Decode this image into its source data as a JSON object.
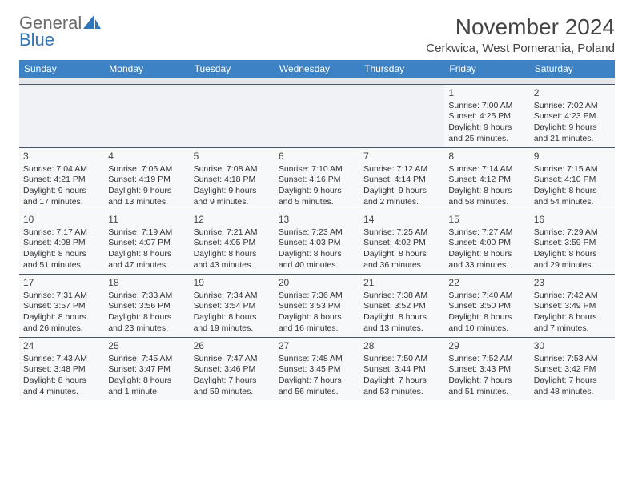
{
  "logo": {
    "text1": "General",
    "text2": "Blue"
  },
  "title": "November 2024",
  "location": "Cerkwica, West Pomerania, Poland",
  "colors": {
    "header_bg": "#3c82c4",
    "header_text": "#ffffff",
    "logo_gray": "#6b6b6b",
    "logo_blue": "#2f76bb",
    "cell_bg": "#f7f8fa",
    "empty_bg": "#f0f2f5",
    "border": "#4a5568"
  },
  "weekdays": [
    "Sunday",
    "Monday",
    "Tuesday",
    "Wednesday",
    "Thursday",
    "Friday",
    "Saturday"
  ],
  "weeks": [
    [
      {
        "empty": true
      },
      {
        "empty": true
      },
      {
        "empty": true
      },
      {
        "empty": true
      },
      {
        "empty": true
      },
      {
        "num": "1",
        "sunrise": "Sunrise: 7:00 AM",
        "sunset": "Sunset: 4:25 PM",
        "daylight": "Daylight: 9 hours and 25 minutes."
      },
      {
        "num": "2",
        "sunrise": "Sunrise: 7:02 AM",
        "sunset": "Sunset: 4:23 PM",
        "daylight": "Daylight: 9 hours and 21 minutes."
      }
    ],
    [
      {
        "num": "3",
        "sunrise": "Sunrise: 7:04 AM",
        "sunset": "Sunset: 4:21 PM",
        "daylight": "Daylight: 9 hours and 17 minutes."
      },
      {
        "num": "4",
        "sunrise": "Sunrise: 7:06 AM",
        "sunset": "Sunset: 4:19 PM",
        "daylight": "Daylight: 9 hours and 13 minutes."
      },
      {
        "num": "5",
        "sunrise": "Sunrise: 7:08 AM",
        "sunset": "Sunset: 4:18 PM",
        "daylight": "Daylight: 9 hours and 9 minutes."
      },
      {
        "num": "6",
        "sunrise": "Sunrise: 7:10 AM",
        "sunset": "Sunset: 4:16 PM",
        "daylight": "Daylight: 9 hours and 5 minutes."
      },
      {
        "num": "7",
        "sunrise": "Sunrise: 7:12 AM",
        "sunset": "Sunset: 4:14 PM",
        "daylight": "Daylight: 9 hours and 2 minutes."
      },
      {
        "num": "8",
        "sunrise": "Sunrise: 7:14 AM",
        "sunset": "Sunset: 4:12 PM",
        "daylight": "Daylight: 8 hours and 58 minutes."
      },
      {
        "num": "9",
        "sunrise": "Sunrise: 7:15 AM",
        "sunset": "Sunset: 4:10 PM",
        "daylight": "Daylight: 8 hours and 54 minutes."
      }
    ],
    [
      {
        "num": "10",
        "sunrise": "Sunrise: 7:17 AM",
        "sunset": "Sunset: 4:08 PM",
        "daylight": "Daylight: 8 hours and 51 minutes."
      },
      {
        "num": "11",
        "sunrise": "Sunrise: 7:19 AM",
        "sunset": "Sunset: 4:07 PM",
        "daylight": "Daylight: 8 hours and 47 minutes."
      },
      {
        "num": "12",
        "sunrise": "Sunrise: 7:21 AM",
        "sunset": "Sunset: 4:05 PM",
        "daylight": "Daylight: 8 hours and 43 minutes."
      },
      {
        "num": "13",
        "sunrise": "Sunrise: 7:23 AM",
        "sunset": "Sunset: 4:03 PM",
        "daylight": "Daylight: 8 hours and 40 minutes."
      },
      {
        "num": "14",
        "sunrise": "Sunrise: 7:25 AM",
        "sunset": "Sunset: 4:02 PM",
        "daylight": "Daylight: 8 hours and 36 minutes."
      },
      {
        "num": "15",
        "sunrise": "Sunrise: 7:27 AM",
        "sunset": "Sunset: 4:00 PM",
        "daylight": "Daylight: 8 hours and 33 minutes."
      },
      {
        "num": "16",
        "sunrise": "Sunrise: 7:29 AM",
        "sunset": "Sunset: 3:59 PM",
        "daylight": "Daylight: 8 hours and 29 minutes."
      }
    ],
    [
      {
        "num": "17",
        "sunrise": "Sunrise: 7:31 AM",
        "sunset": "Sunset: 3:57 PM",
        "daylight": "Daylight: 8 hours and 26 minutes."
      },
      {
        "num": "18",
        "sunrise": "Sunrise: 7:33 AM",
        "sunset": "Sunset: 3:56 PM",
        "daylight": "Daylight: 8 hours and 23 minutes."
      },
      {
        "num": "19",
        "sunrise": "Sunrise: 7:34 AM",
        "sunset": "Sunset: 3:54 PM",
        "daylight": "Daylight: 8 hours and 19 minutes."
      },
      {
        "num": "20",
        "sunrise": "Sunrise: 7:36 AM",
        "sunset": "Sunset: 3:53 PM",
        "daylight": "Daylight: 8 hours and 16 minutes."
      },
      {
        "num": "21",
        "sunrise": "Sunrise: 7:38 AM",
        "sunset": "Sunset: 3:52 PM",
        "daylight": "Daylight: 8 hours and 13 minutes."
      },
      {
        "num": "22",
        "sunrise": "Sunrise: 7:40 AM",
        "sunset": "Sunset: 3:50 PM",
        "daylight": "Daylight: 8 hours and 10 minutes."
      },
      {
        "num": "23",
        "sunrise": "Sunrise: 7:42 AM",
        "sunset": "Sunset: 3:49 PM",
        "daylight": "Daylight: 8 hours and 7 minutes."
      }
    ],
    [
      {
        "num": "24",
        "sunrise": "Sunrise: 7:43 AM",
        "sunset": "Sunset: 3:48 PM",
        "daylight": "Daylight: 8 hours and 4 minutes."
      },
      {
        "num": "25",
        "sunrise": "Sunrise: 7:45 AM",
        "sunset": "Sunset: 3:47 PM",
        "daylight": "Daylight: 8 hours and 1 minute."
      },
      {
        "num": "26",
        "sunrise": "Sunrise: 7:47 AM",
        "sunset": "Sunset: 3:46 PM",
        "daylight": "Daylight: 7 hours and 59 minutes."
      },
      {
        "num": "27",
        "sunrise": "Sunrise: 7:48 AM",
        "sunset": "Sunset: 3:45 PM",
        "daylight": "Daylight: 7 hours and 56 minutes."
      },
      {
        "num": "28",
        "sunrise": "Sunrise: 7:50 AM",
        "sunset": "Sunset: 3:44 PM",
        "daylight": "Daylight: 7 hours and 53 minutes."
      },
      {
        "num": "29",
        "sunrise": "Sunrise: 7:52 AM",
        "sunset": "Sunset: 3:43 PM",
        "daylight": "Daylight: 7 hours and 51 minutes."
      },
      {
        "num": "30",
        "sunrise": "Sunrise: 7:53 AM",
        "sunset": "Sunset: 3:42 PM",
        "daylight": "Daylight: 7 hours and 48 minutes."
      }
    ]
  ]
}
